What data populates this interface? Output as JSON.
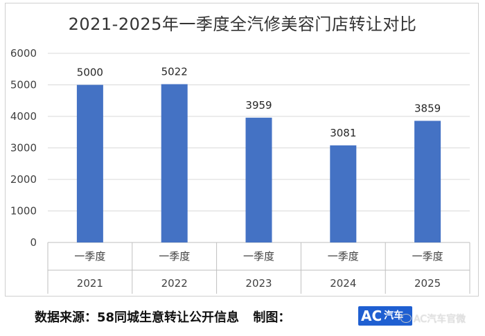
{
  "chart_data": {
    "type": "bar",
    "title": "2021-2025年一季度全汽修美容门店转让对比",
    "xlabel": "",
    "ylabel": "",
    "categories": [
      {
        "quarter": "一季度",
        "year": "2021"
      },
      {
        "quarter": "一季度",
        "year": "2022"
      },
      {
        "quarter": "一季度",
        "year": "2023"
      },
      {
        "quarter": "一季度",
        "year": "2024"
      },
      {
        "quarter": "一季度",
        "year": "2025"
      }
    ],
    "values": [
      5000,
      5022,
      3959,
      3081,
      3859
    ],
    "data_labels": [
      "5000",
      "5022",
      "3959",
      "3081",
      "3859"
    ],
    "ylim": [
      0,
      6000
    ],
    "yticks": [
      "0",
      "1000",
      "2000",
      "3000",
      "4000",
      "5000",
      "6000"
    ],
    "grid": true,
    "bar_color": "#4472c4",
    "grid_color": "#d9d9d9"
  },
  "footer": {
    "source_label": "数据来源：58同城生意转让公开信息",
    "chart_by": "制图：",
    "logo_letters": "AC",
    "logo_sub": "汽车",
    "logo_color": "#1f5fd1",
    "watermark": "AC汽车官微",
    "watermark_icon": "weibo-icon"
  }
}
